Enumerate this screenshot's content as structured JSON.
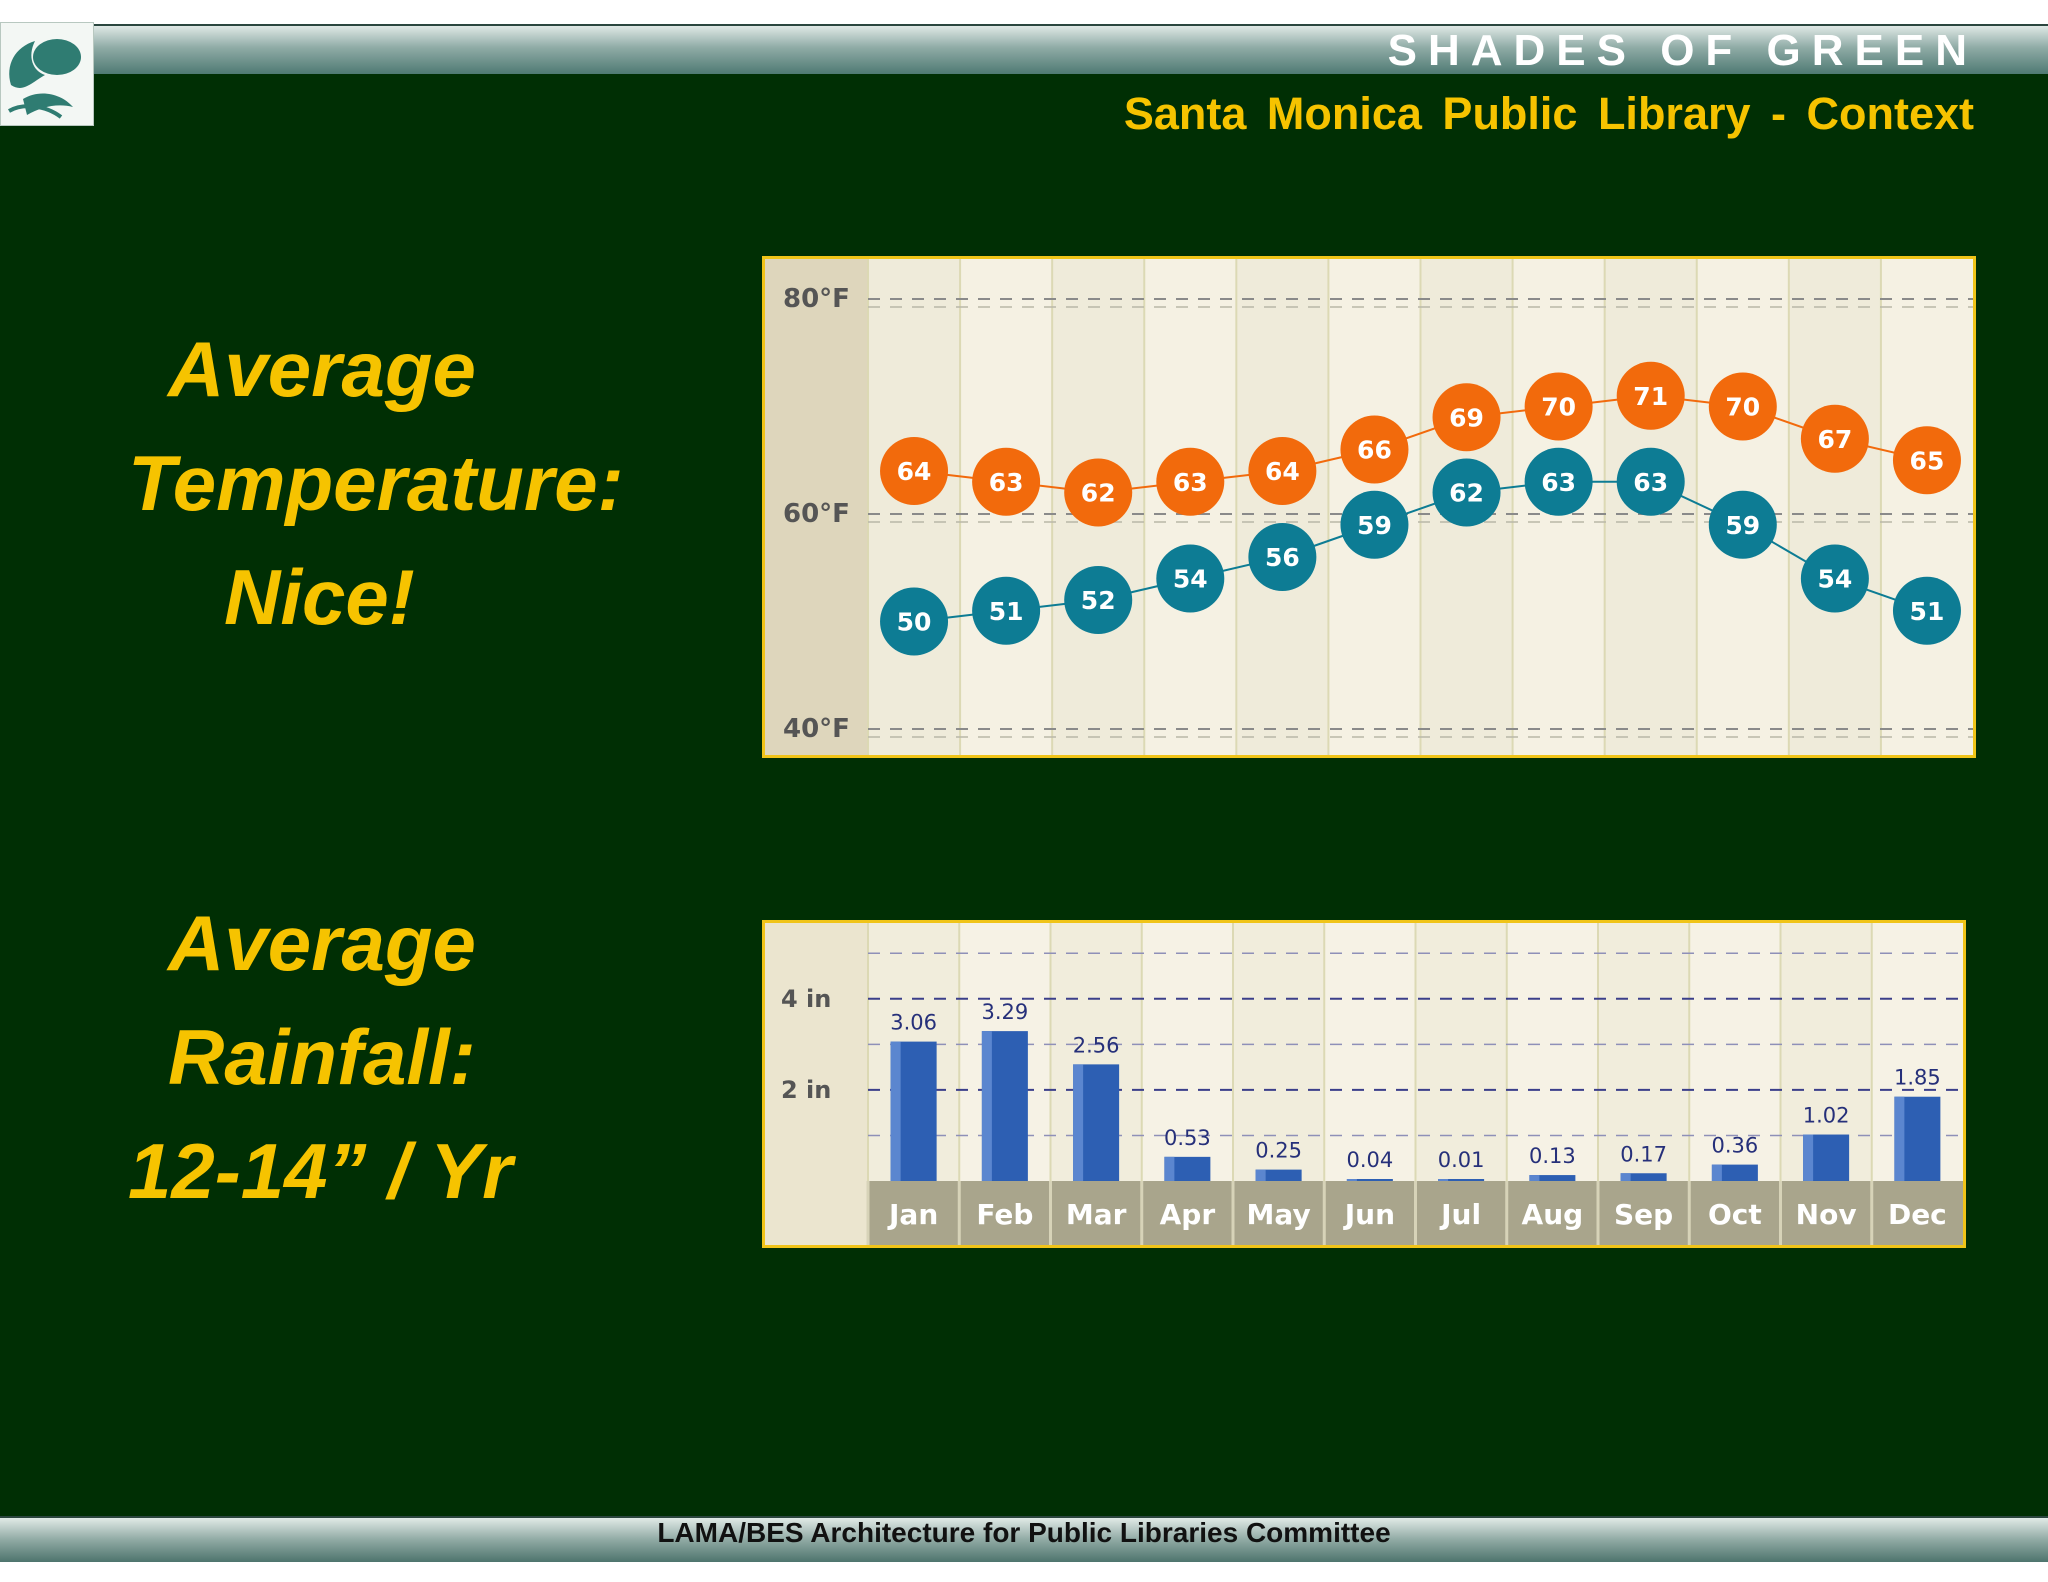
{
  "header": {
    "brand": "SHADES OF GREEN",
    "subtitle": "Santa Monica Public Library - Context"
  },
  "temperature_text": {
    "line1": "Average",
    "line2": "Temperature:",
    "line3": "Nice!"
  },
  "rainfall_text": {
    "line1": "Average",
    "line2": "Rainfall:",
    "line3": "12-14” / Yr"
  },
  "footer": {
    "text": "LAMA/BES Architecture for Public Libraries Committee"
  },
  "colors": {
    "background": "#002f04",
    "accent_yellow": "#f6c300",
    "high_marker": "#f26a0c",
    "low_marker": "#0d7c94",
    "bar": "#2d5fb3"
  },
  "chart_data": [
    {
      "type": "line",
      "categories": [
        "Jan",
        "Feb",
        "Mar",
        "Apr",
        "May",
        "Jun",
        "Jul",
        "Aug",
        "Sep",
        "Oct",
        "Nov",
        "Dec"
      ],
      "series": [
        {
          "values": [
            64,
            63,
            62,
            63,
            64,
            66,
            69,
            70,
            71,
            70,
            67,
            65
          ],
          "color": "#f26a0c"
        },
        {
          "values": [
            50,
            51,
            52,
            54,
            56,
            59,
            62,
            63,
            63,
            59,
            54,
            51
          ],
          "color": "#0d7c94"
        }
      ],
      "yticks": [
        "80°F",
        "60°F",
        "40°F"
      ],
      "ylim": [
        40,
        80
      ],
      "grid": true,
      "data_labels": true
    },
    {
      "type": "bar",
      "categories": [
        "Jan",
        "Feb",
        "Mar",
        "Apr",
        "May",
        "Jun",
        "Jul",
        "Aug",
        "Sep",
        "Oct",
        "Nov",
        "Dec"
      ],
      "values": [
        3.06,
        3.29,
        2.56,
        0.53,
        0.25,
        0.04,
        0.01,
        0.13,
        0.17,
        0.36,
        1.02,
        1.85
      ],
      "value_labels": [
        "3.06",
        "3.29",
        "2.56",
        "0.53",
        "0.25",
        "0.04",
        "0.01",
        "0.13",
        "0.17",
        "0.36",
        "1.02",
        "1.85"
      ],
      "yticks": [
        "4 in",
        "2 in"
      ],
      "ylim": [
        0,
        5.4
      ],
      "grid": true,
      "data_labels": true
    }
  ]
}
